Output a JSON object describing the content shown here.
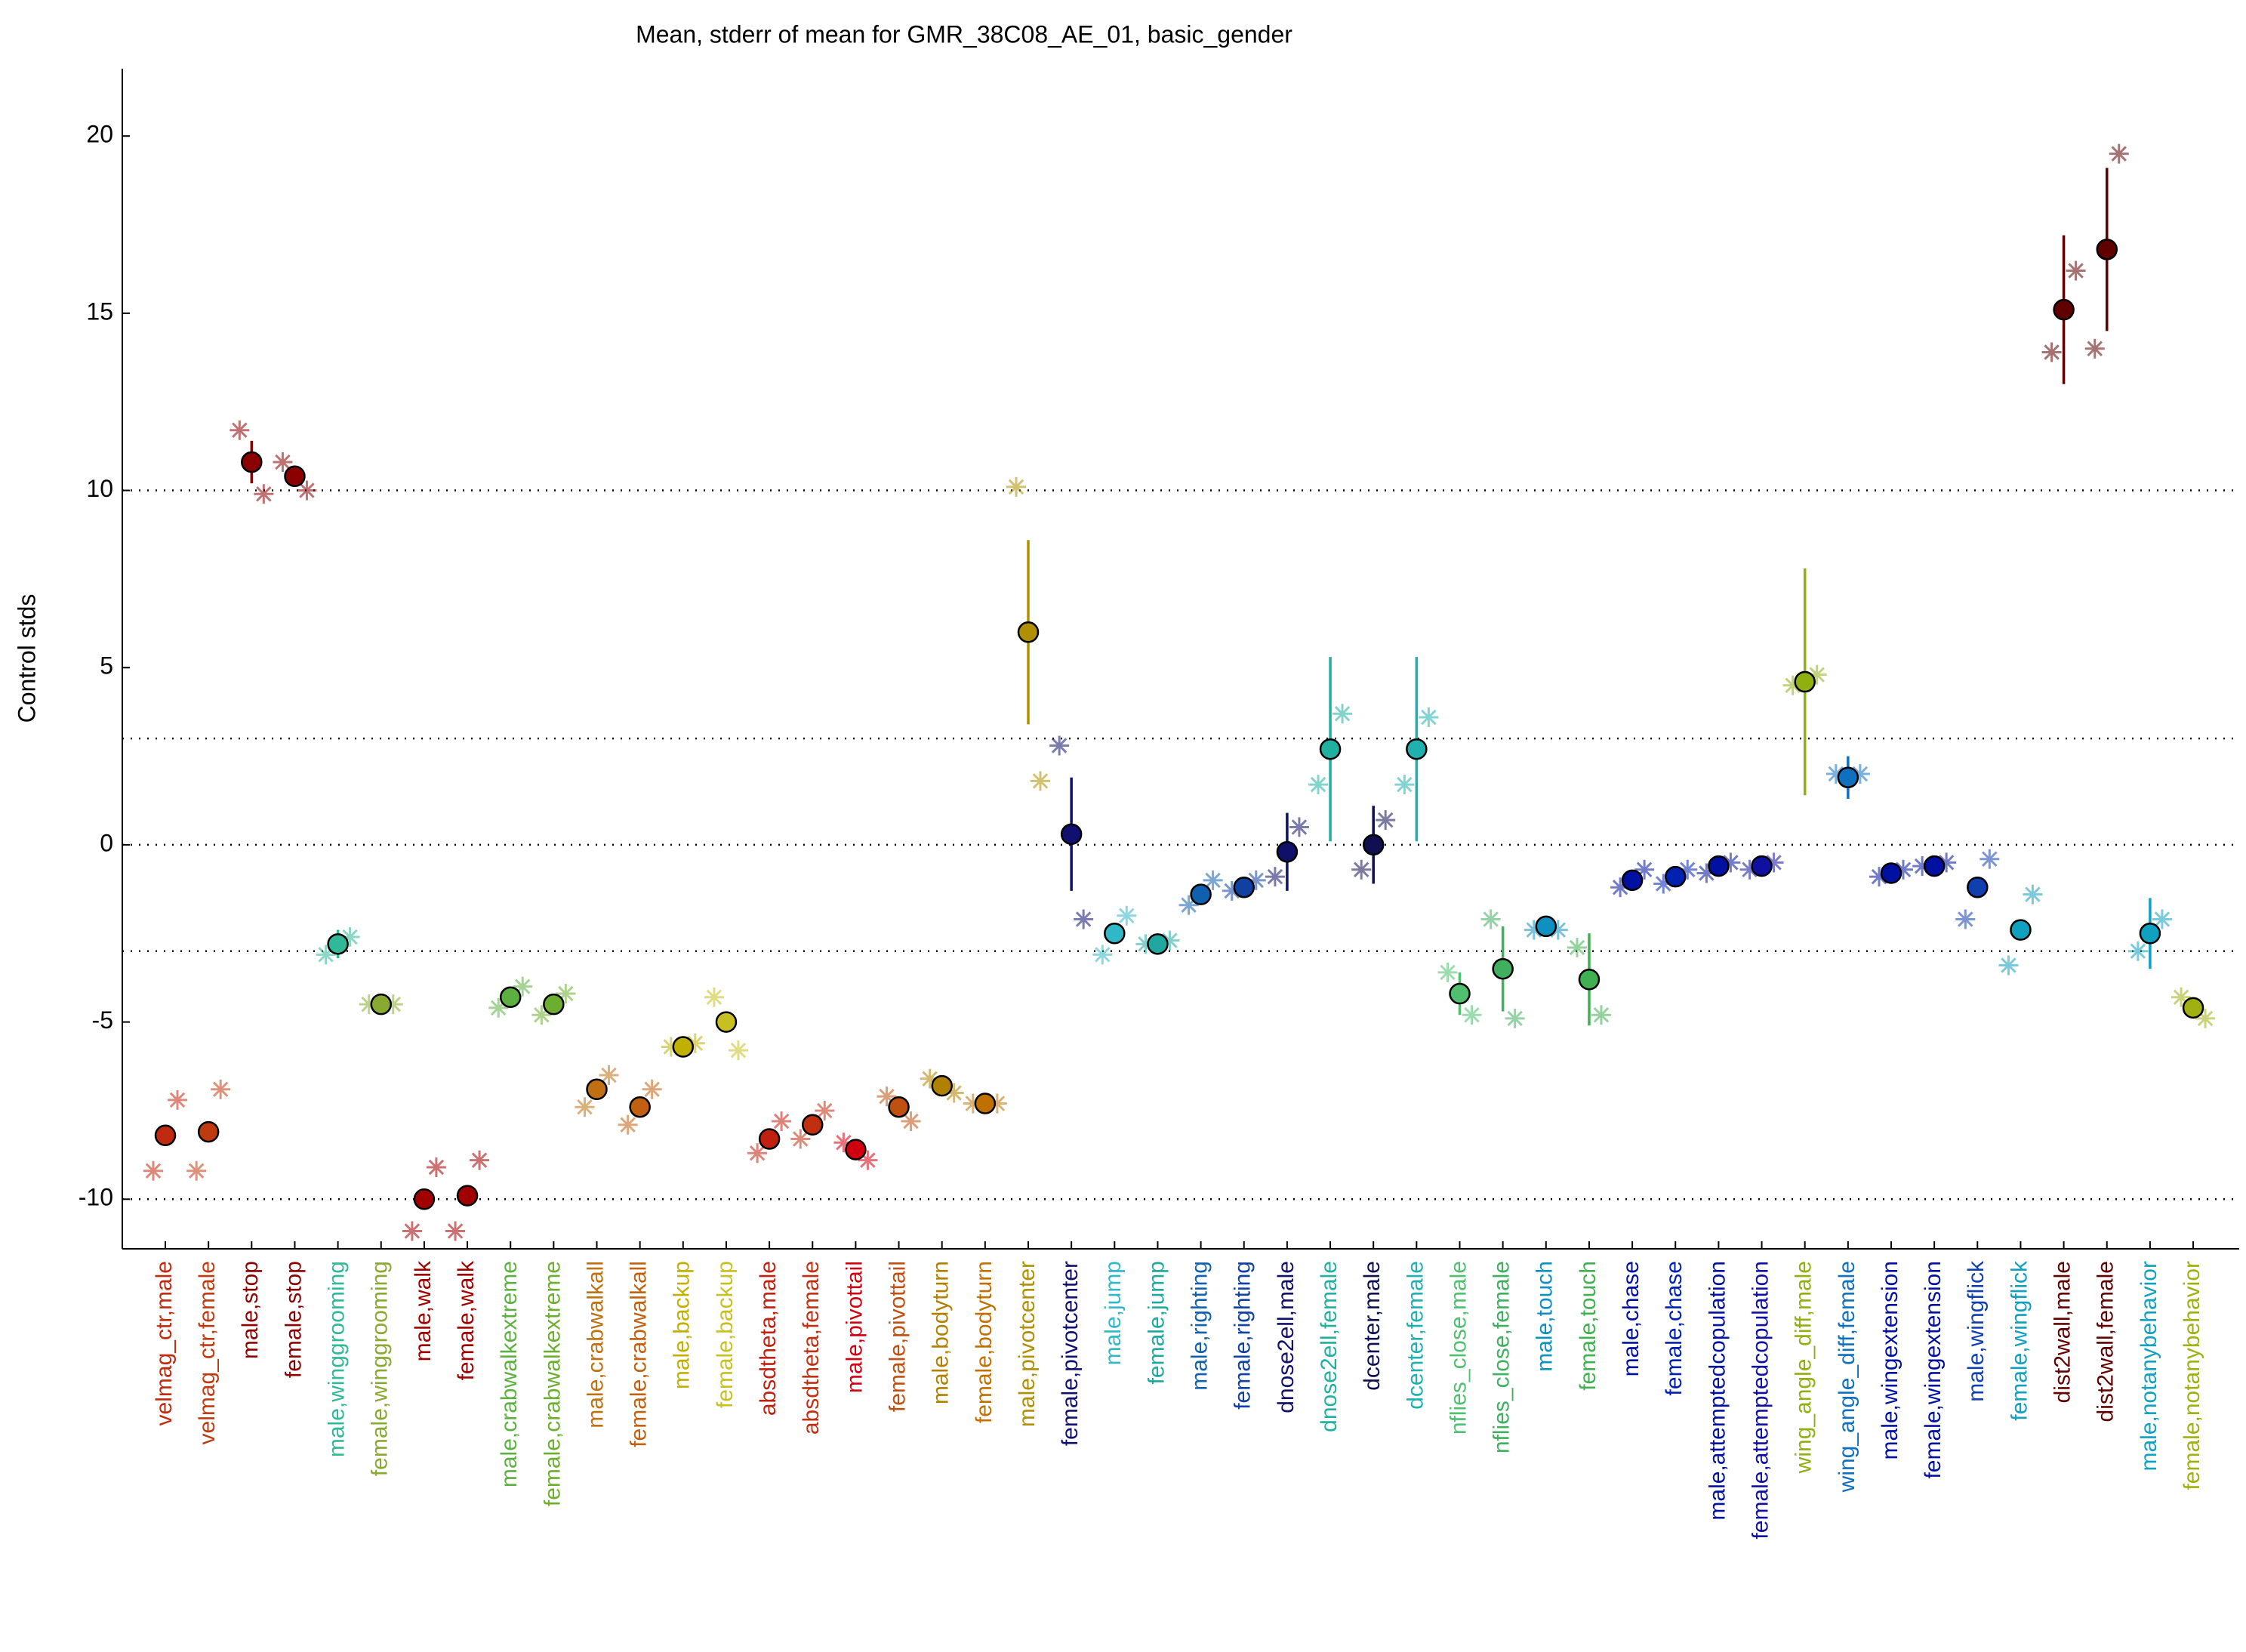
{
  "chart_data": {
    "type": "errorbar",
    "title": "Mean, stderr of mean for GMR_38C08_AE_01, basic_gender",
    "ylabel": "Control stds",
    "categories": [
      "velmag_ctr,male",
      "velmag_ctr,female",
      "male,stop",
      "female,stop",
      "male,winggrooming",
      "female,winggrooming",
      "male,walk",
      "female,walk",
      "male,crabwalkextreme",
      "female,crabwalkextreme",
      "male,crabwalkall",
      "female,crabwalkall",
      "male,backup",
      "female,backup",
      "absdtheta,male",
      "absdtheta,female",
      "male,pivottail",
      "female,pivottail",
      "male,bodyturn",
      "female,bodyturn",
      "male,pivotcenter",
      "female,pivotcenter",
      "male,jump",
      "female,jump",
      "male,righting",
      "female,righting",
      "dnose2ell,male",
      "dnose2ell,female",
      "dcenter,male",
      "dcenter,female",
      "nflies_close,male",
      "nflies_close,female",
      "male,touch",
      "female,touch",
      "male,chase",
      "female,chase",
      "male,attemptedcopulation",
      "female,attemptedcopulation",
      "wing_angle_diff,male",
      "wing_angle_diff,female",
      "male,wingextension",
      "female,wingextension",
      "male,wingflick",
      "female,wingflick",
      "dist2wall,male",
      "dist2wall,female",
      "male,notanybehavior",
      "female,notanybehavior"
    ],
    "values": [
      -8.2,
      -8.1,
      10.8,
      10.4,
      -2.8,
      -4.5,
      -10.0,
      -9.9,
      -4.3,
      -4.5,
      -6.9,
      -7.4,
      -5.7,
      -5.0,
      -8.3,
      -7.9,
      -8.6,
      -7.4,
      -6.8,
      -7.3,
      6.0,
      0.3,
      -2.5,
      -2.8,
      -1.4,
      -1.2,
      -0.2,
      2.7,
      0.0,
      2.7,
      -4.2,
      -3.5,
      -2.3,
      -3.8,
      -1.0,
      -0.9,
      -0.6,
      -0.6,
      4.6,
      1.9,
      -0.8,
      -0.6,
      -1.2,
      -2.4,
      15.1,
      16.8,
      -2.5,
      -4.6
    ],
    "errors": [
      0.1,
      0.1,
      0.6,
      0.3,
      0.4,
      0.1,
      0.1,
      0.1,
      0.2,
      0.2,
      0.2,
      0.2,
      0.1,
      0.2,
      0.2,
      0.2,
      0.1,
      0.2,
      0.1,
      0.1,
      2.6,
      1.6,
      0.2,
      0.1,
      0.2,
      0.2,
      1.1,
      2.6,
      1.1,
      2.6,
      0.6,
      1.2,
      0.3,
      1.3,
      0.2,
      0.2,
      0.1,
      0.1,
      3.2,
      0.6,
      0.1,
      0.1,
      0.2,
      0.2,
      2.1,
      2.3,
      1.0,
      0.3
    ],
    "exp1": [
      -9.2,
      -9.2,
      11.7,
      10.8,
      -3.1,
      -4.5,
      -10.9,
      -10.9,
      -4.6,
      -4.8,
      -7.4,
      -7.9,
      -5.7,
      -4.3,
      -8.7,
      -8.3,
      -8.4,
      -7.1,
      -6.6,
      -7.3,
      10.1,
      2.8,
      -3.1,
      -2.8,
      -1.7,
      -1.3,
      -0.9,
      1.7,
      -0.7,
      1.7,
      -3.6,
      -2.1,
      -2.4,
      -2.9,
      -1.2,
      -1.1,
      -0.8,
      -0.7,
      4.5,
      2.0,
      -0.9,
      -0.6,
      -2.1,
      -3.4,
      13.9,
      14.0,
      -3.0,
      -4.3
    ],
    "exp2": [
      -7.2,
      -6.9,
      9.9,
      10.0,
      -2.6,
      -4.5,
      -9.1,
      -8.9,
      -4.0,
      -4.2,
      -6.5,
      -6.9,
      -5.6,
      -5.8,
      -7.8,
      -7.5,
      -8.9,
      -7.8,
      -7.0,
      -7.3,
      1.8,
      -2.1,
      -2.0,
      -2.7,
      -1.0,
      -1.0,
      0.5,
      3.7,
      0.7,
      3.6,
      -4.8,
      -4.9,
      -2.4,
      -4.8,
      -0.7,
      -0.7,
      -0.5,
      -0.5,
      4.8,
      2.0,
      -0.7,
      -0.5,
      -0.4,
      -1.4,
      16.2,
      19.5,
      -2.1,
      -4.9
    ],
    "colors": [
      "#c02a10",
      "#c03a10",
      "#8b0000",
      "#8b0000",
      "#30b898",
      "#88aa30",
      "#a00000",
      "#a00000",
      "#5cb040",
      "#6cae30",
      "#c07010",
      "#c06010",
      "#c0b000",
      "#c8c020",
      "#c02010",
      "#c03010",
      "#d00010",
      "#c05010",
      "#b08000",
      "#c07000",
      "#b09000",
      "#101070",
      "#30b8c8",
      "#20a8a0",
      "#1060b0",
      "#1040a0",
      "#101068",
      "#20b0a0",
      "#101050",
      "#20b0b0",
      "#50c070",
      "#40b060",
      "#1090c0",
      "#40b050",
      "#0010a0",
      "#0020b0",
      "#0010a0",
      "#1010a0",
      "#90b010",
      "#1070c0",
      "#0010a0",
      "#0010a0",
      "#1040b0",
      "#10a0c0",
      "#600000",
      "#600000",
      "#10a0c0",
      "#a0b010"
    ],
    "ylim": [
      -11.4,
      21.9
    ],
    "yticks": [
      -10,
      -5,
      0,
      5,
      10,
      15,
      20
    ],
    "hlines": [
      -10,
      -3,
      0,
      3,
      10
    ]
  }
}
